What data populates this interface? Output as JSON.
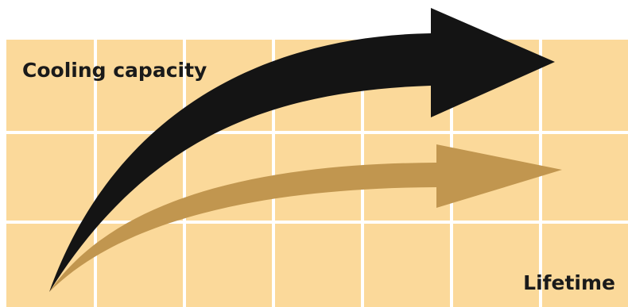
{
  "colors": {
    "background": "#ffffff",
    "grid_fill": "#fbd99a",
    "grid_lines": "#ffffff",
    "arrow_primary": "#141414",
    "arrow_secondary": "#c1964f",
    "label_text": "#1a1a1a"
  },
  "labels": {
    "y_axis": "Cooling capacity",
    "x_axis": "Lifetime"
  },
  "arrows": [
    {
      "name": "cooling-capacity-arrow",
      "color_key": "arrow_primary",
      "level": "higher"
    },
    {
      "name": "lifetime-arrow",
      "color_key": "arrow_secondary",
      "level": "lower"
    }
  ]
}
